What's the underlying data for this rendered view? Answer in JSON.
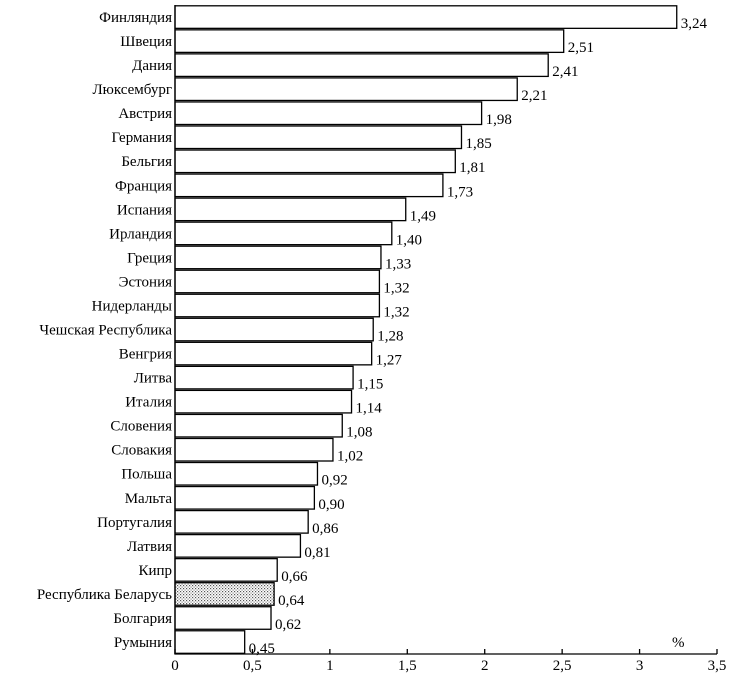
{
  "chart_data": {
    "type": "bar",
    "orientation": "horizontal",
    "categories": [
      "Финляндия",
      "Швеция",
      "Дания",
      "Люксембург",
      "Австрия",
      "Германия",
      "Бельгия",
      "Франция",
      "Испания",
      "Ирландия",
      "Греция",
      "Эстония",
      "Нидерланды",
      "Чешская Республика",
      "Венгрия",
      "Литва",
      "Италия",
      "Словения",
      "Словакия",
      "Польша",
      "Мальта",
      "Португалия",
      "Латвия",
      "Кипр",
      "Республика Беларусь",
      "Болгария",
      "Румыния"
    ],
    "values": [
      3.24,
      2.51,
      2.41,
      2.21,
      1.98,
      1.85,
      1.81,
      1.73,
      1.49,
      1.4,
      1.33,
      1.32,
      1.32,
      1.28,
      1.27,
      1.15,
      1.14,
      1.08,
      1.02,
      0.92,
      0.9,
      0.86,
      0.81,
      0.66,
      0.64,
      0.62,
      0.45
    ],
    "value_labels": [
      "3,24",
      "2,51",
      "2,41",
      "2,21",
      "1,98",
      "1,85",
      "1,81",
      "1,73",
      "1,49",
      "1,40",
      "1,33",
      "1,32",
      "1,32",
      "1,28",
      "1,27",
      "1,15",
      "1,14",
      "1,08",
      "1,02",
      "0,92",
      "0,90",
      "0,86",
      "0,81",
      "0,66",
      "0,64",
      "0,62",
      "0,45"
    ],
    "highlighted_category": "Республика Беларусь",
    "xlim": [
      0,
      3.5
    ],
    "xticks": [
      0,
      0.5,
      1,
      1.5,
      2,
      2.5,
      3,
      3.5
    ],
    "xtick_labels": [
      "0",
      "0,5",
      "1",
      "1,5",
      "2",
      "2,5",
      "3",
      "3,5"
    ],
    "unit_label": "%",
    "grid": false,
    "colors": {
      "bar_fill": "#ffffff",
      "bar_stroke": "#000000",
      "highlight_fill": "#cccccc"
    }
  }
}
